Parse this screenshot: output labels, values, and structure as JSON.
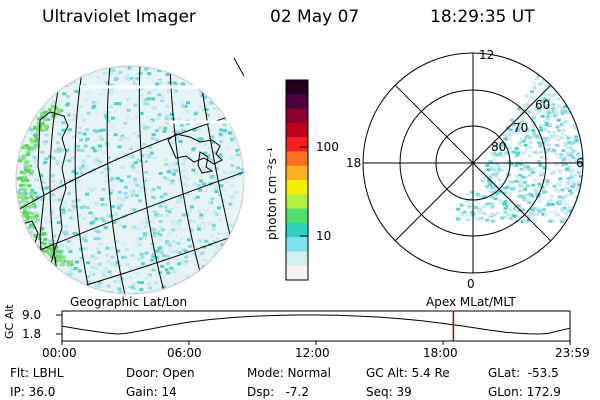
{
  "header": {
    "instrument": "Ultraviolet Imager",
    "date": "02 May 07",
    "time": "18:29:35 UT"
  },
  "colorbar": {
    "label": "photon cm⁻²s⁻¹",
    "ticks": [
      "100",
      "10"
    ],
    "colors": [
      "#200020",
      "#500040",
      "#8a0030",
      "#c00020",
      "#f02020",
      "#ff7020",
      "#ffb020",
      "#f0f000",
      "#b0f040",
      "#50e070",
      "#30d0c0",
      "#80e0f0",
      "#d0f0f0",
      "#f4f4f4"
    ]
  },
  "left_panel": {
    "label": "Geographic Lat/Lon"
  },
  "right_panel": {
    "label": "Apex MLat/MLT",
    "mlt_labels": [
      "12",
      "18",
      "6",
      "0"
    ],
    "lat_labels": [
      "60",
      "70",
      "80"
    ]
  },
  "chart_data": {
    "type": "line",
    "title": "",
    "ylabel": "GC Alt",
    "yticks": [
      "9.0",
      "1.8"
    ],
    "ylim": [
      1.8,
      9.0
    ],
    "xticks": [
      "00:00",
      "06:00",
      "12:00",
      "18:00",
      "23:59"
    ],
    "x_hours": [
      0,
      1,
      2,
      2.6,
      3,
      4,
      5,
      6,
      7,
      8,
      9,
      10,
      11,
      12,
      13,
      14,
      15,
      16,
      17,
      18,
      19,
      20,
      21,
      22,
      22.6,
      23,
      23.98
    ],
    "y_values": [
      4.8,
      3.4,
      2.3,
      1.8,
      2.0,
      3.4,
      5.0,
      6.3,
      7.3,
      8.0,
      8.5,
      8.8,
      9.0,
      9.0,
      8.9,
      8.6,
      8.2,
      7.6,
      6.8,
      5.8,
      4.7,
      3.5,
      2.4,
      1.9,
      1.8,
      2.1,
      4.0
    ],
    "current_time_hours": 18.49,
    "current_marker_color": "#c00000",
    "series_color": "#000000"
  },
  "footer": {
    "flt": "Flt: LBHL",
    "ip": "IP: 36.0",
    "door": "Door: Open",
    "gain": "Gain: 14",
    "mode": "Mode: Normal",
    "dsp": "Dsp:   -7.2",
    "gcalt": "GC Alt: 5.4 Re",
    "seq": "Seq: 39",
    "glat": "GLat:  -53.5",
    "glon": "GLon: 172.9"
  }
}
